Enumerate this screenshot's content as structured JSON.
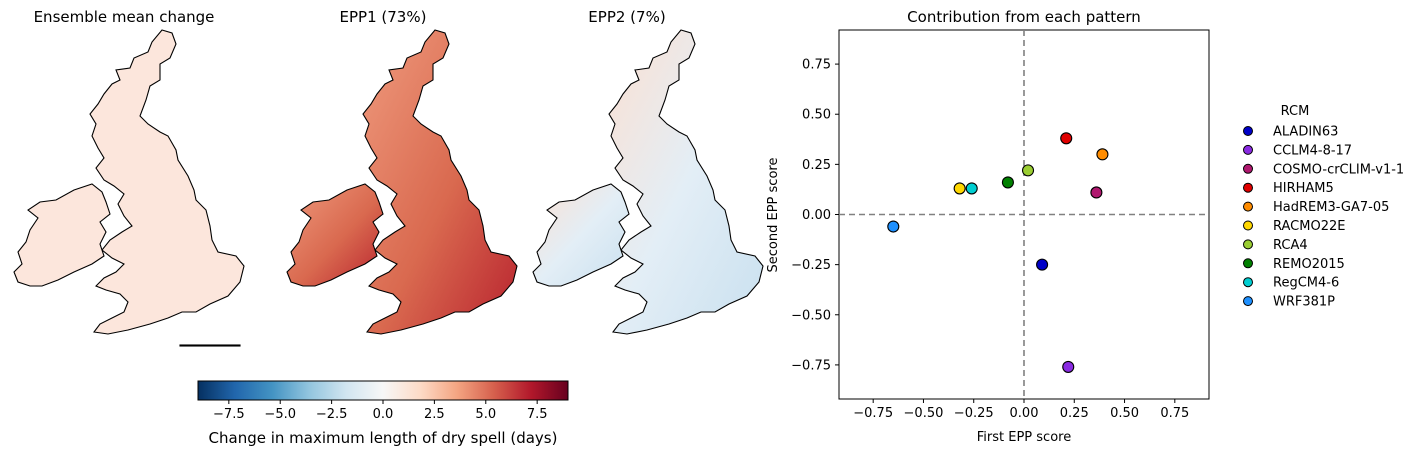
{
  "maps": {
    "titles": [
      "Ensemble mean change",
      "EPP1 (73%)",
      "EPP2 (7%)"
    ]
  },
  "colorbar": {
    "label": "Change in maximum length of dry spell (days)",
    "ticks": [
      "−7.5",
      "−5.0",
      "−2.5",
      "0.0",
      "2.5",
      "5.0",
      "7.5"
    ],
    "tick_values": [
      -7.5,
      -5.0,
      -2.5,
      0.0,
      2.5,
      5.0,
      7.5
    ],
    "range": [
      -9,
      9
    ],
    "colormap": "RdBu_r"
  },
  "chart_data": {
    "type": "scatter",
    "title": "Contribution from each pattern",
    "xlabel": "First EPP score",
    "ylabel": "Second EPP score",
    "xlim": [
      -0.92,
      0.92
    ],
    "ylim": [
      -0.92,
      0.92
    ],
    "xticks": [
      -0.75,
      -0.5,
      -0.25,
      0.0,
      0.25,
      0.5,
      0.75
    ],
    "xtick_labels": [
      "−0.75",
      "−0.50",
      "−0.25",
      "0.00",
      "0.25",
      "0.50",
      "0.75"
    ],
    "yticks": [
      -0.75,
      -0.5,
      -0.25,
      0.0,
      0.25,
      0.5,
      0.75
    ],
    "ytick_labels": [
      "−0.75",
      "−0.50",
      "−0.25",
      "0.00",
      "0.25",
      "0.50",
      "0.75"
    ],
    "grid": false,
    "reference_lines": "dashed grey lines at x=0 and y=0",
    "legend": {
      "title": "RCM",
      "placement": "outside-right"
    },
    "series": [
      {
        "name": "ALADIN63",
        "color": "#0000c8",
        "x": 0.09,
        "y": -0.25
      },
      {
        "name": "CCLM4-8-17",
        "color": "#8a2be2",
        "x": 0.22,
        "y": -0.76
      },
      {
        "name": "COSMO-crCLIM-v1-1",
        "color": "#b0186f",
        "x": 0.36,
        "y": 0.11
      },
      {
        "name": "HIRHAM5",
        "color": "#e00000",
        "x": 0.21,
        "y": 0.38
      },
      {
        "name": "HadREM3-GA7-05",
        "color": "#ff8c00",
        "x": 0.39,
        "y": 0.3
      },
      {
        "name": "RACMO22E",
        "color": "#ffd700",
        "x": -0.32,
        "y": 0.13
      },
      {
        "name": "RCA4",
        "color": "#9acd32",
        "x": 0.02,
        "y": 0.22
      },
      {
        "name": "REMO2015",
        "color": "#008000",
        "x": -0.08,
        "y": 0.16
      },
      {
        "name": "RegCM4-6",
        "color": "#00ced1",
        "x": -0.26,
        "y": 0.13
      },
      {
        "name": "WRF381P",
        "color": "#1e90ff",
        "x": -0.65,
        "y": -0.06
      }
    ]
  }
}
